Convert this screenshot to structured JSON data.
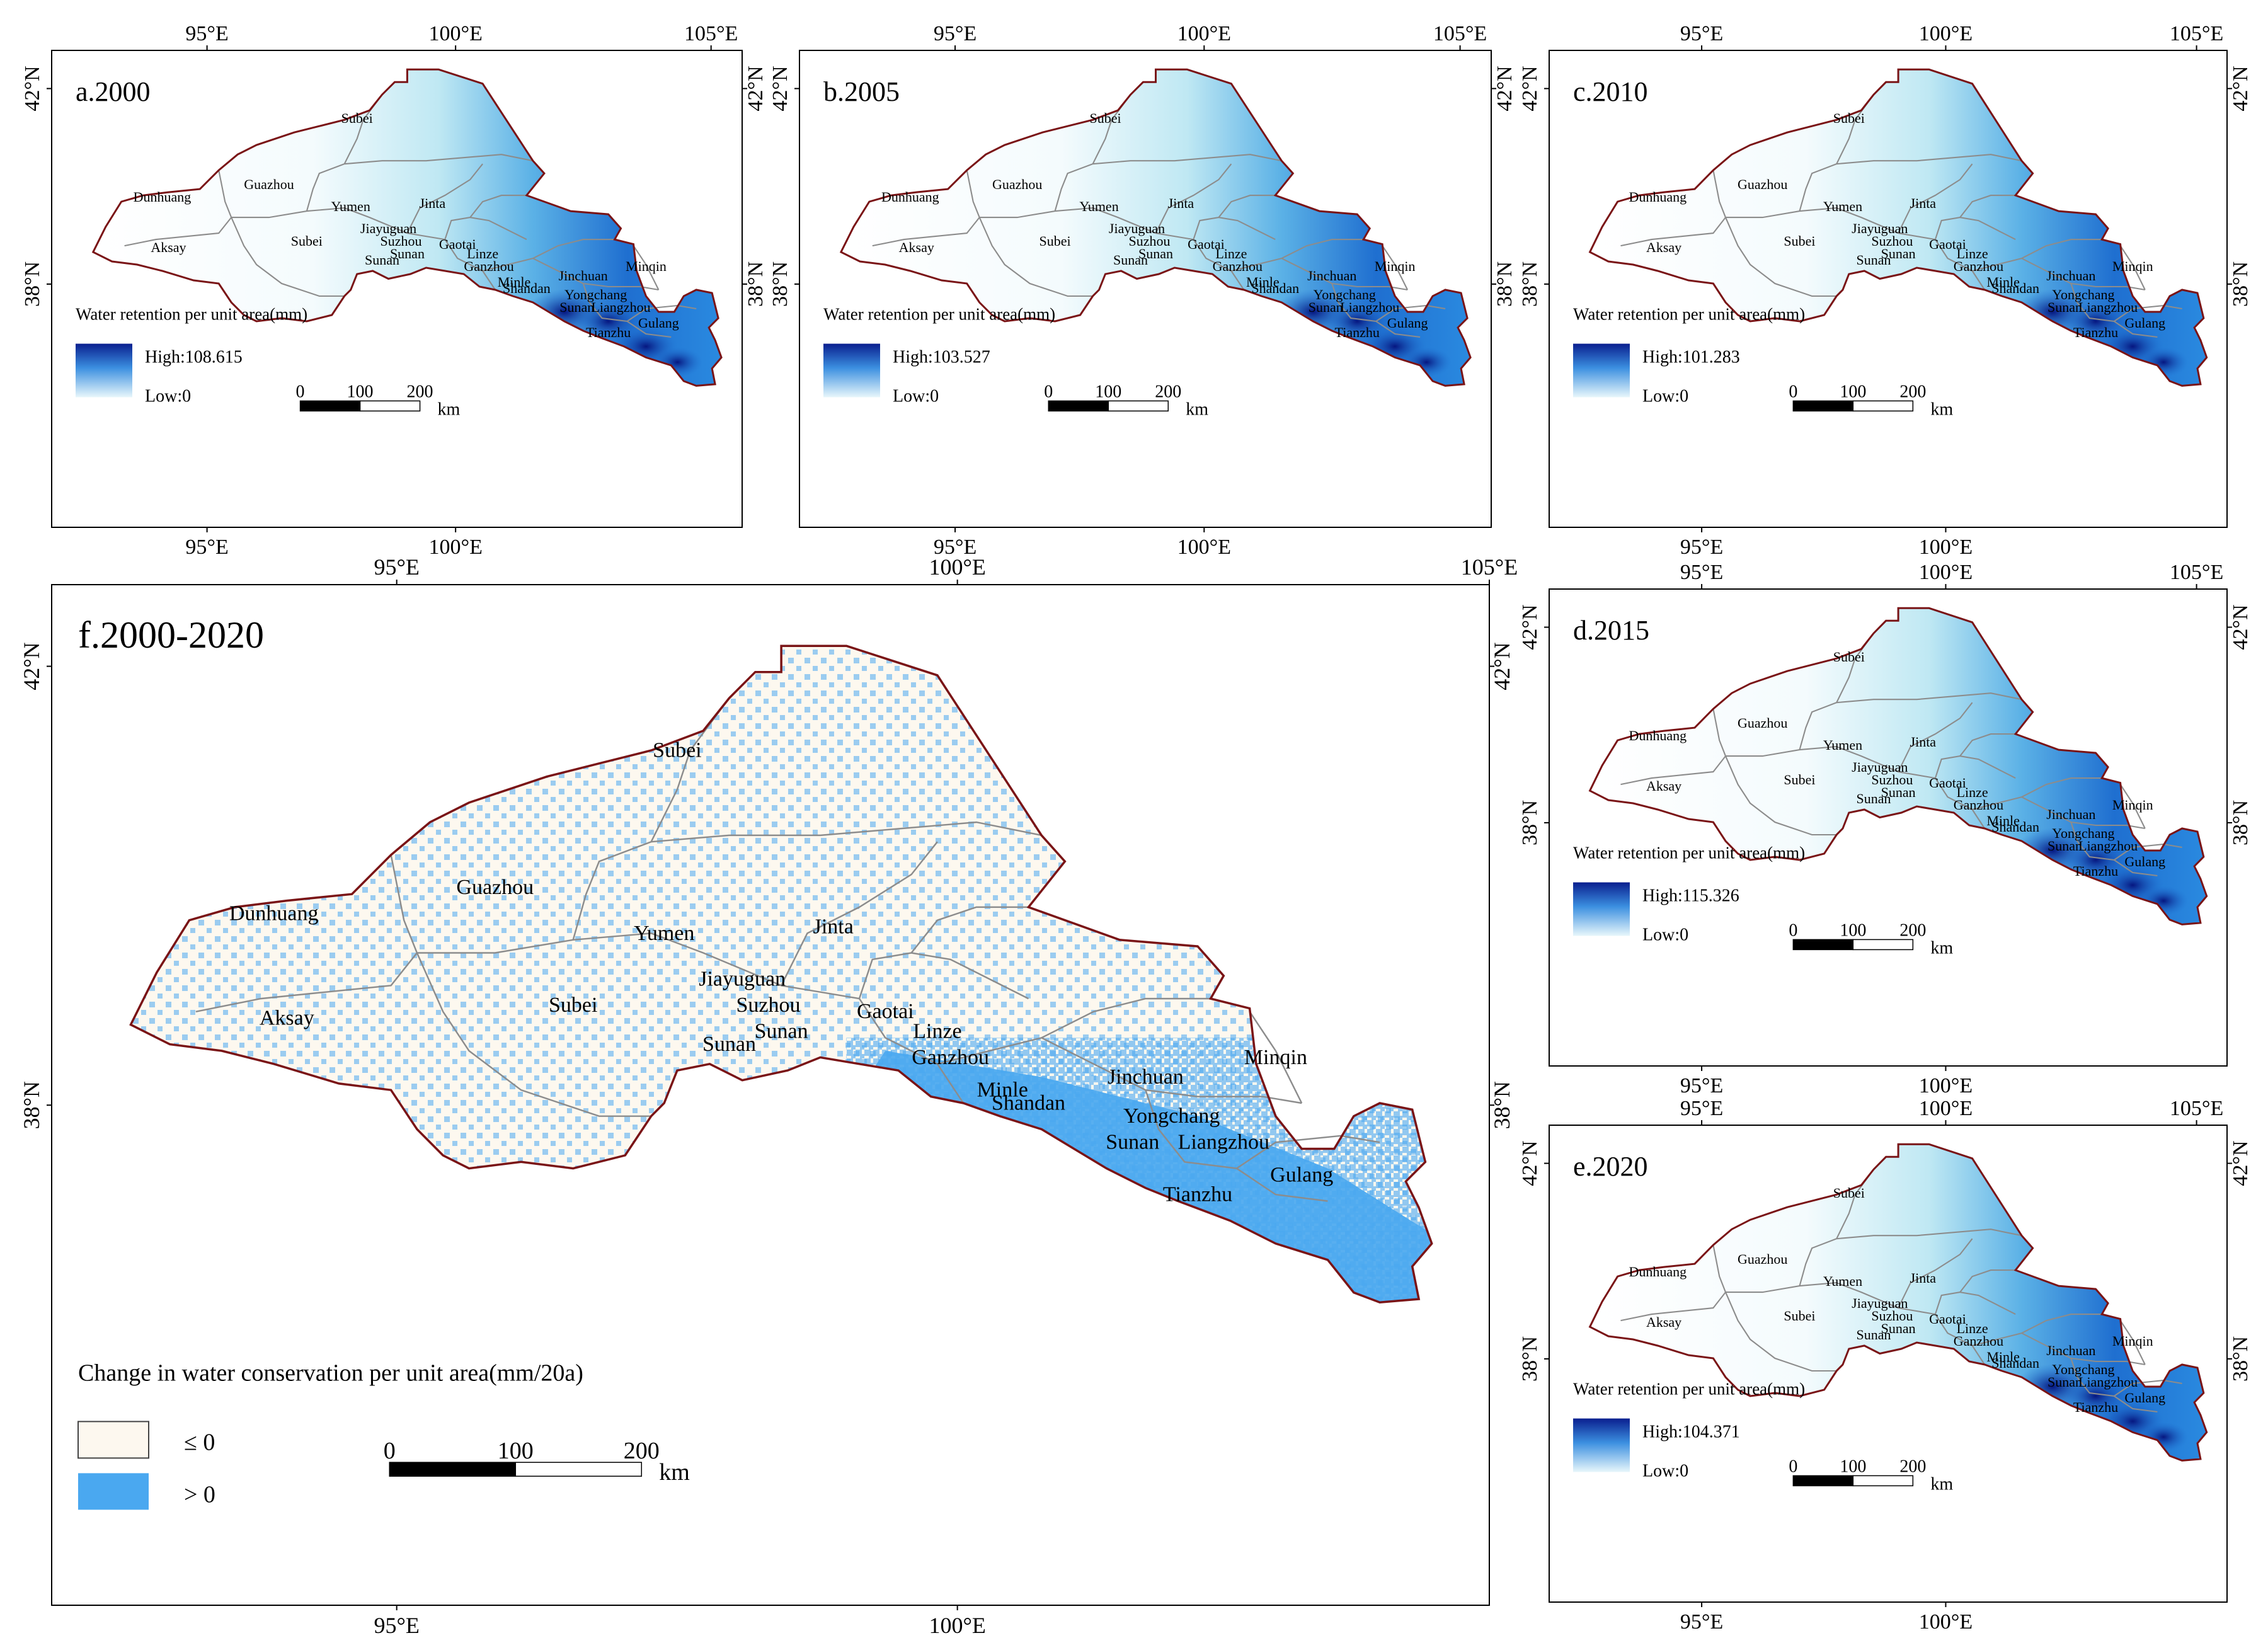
{
  "coord_labels": {
    "lon_95": "95°E",
    "lon_100": "100°E",
    "lon_105": "105°E",
    "lat_42": "42°N",
    "lat_38": "38°N"
  },
  "county_names": {
    "subei_n": "Subei",
    "dunhuang": "Dunhuang",
    "guazhou": "Guazhou",
    "yumen": "Yumen",
    "jinta": "Jinta",
    "jiayuguan": "Jiayuguan",
    "suzhou": "Suzhou",
    "sunan_a": "Sunan",
    "sunan_b": "Sunan",
    "sunan_c": "Sunan",
    "gaotai": "Gaotai",
    "linze": "Linze",
    "ganzhou": "Ganzhou",
    "minle": "Minle",
    "shandan": "Shandan",
    "jinchuan": "Jinchuan",
    "minqin": "Minqin",
    "yongchang": "Yongchang",
    "liangzhou": "Liangzhou",
    "gulang": "Gulang",
    "tianzhu": "Tianzhu",
    "aksay": "Aksay",
    "subei_s": "Subei"
  },
  "panels": {
    "a": {
      "title": "a.2000",
      "legend_title": "Water retention per unit area(mm)",
      "high": "High:108.615",
      "low": "Low:0"
    },
    "b": {
      "title": "b.2005",
      "legend_title": "Water retention per unit area(mm)",
      "high": "High:103.527",
      "low": "Low:0"
    },
    "c": {
      "title": "c.2010",
      "legend_title": "Water retention per unit area(mm)",
      "high": "High:101.283",
      "low": "Low:0"
    },
    "d": {
      "title": "d.2015",
      "legend_title": "Water retention per unit area(mm)",
      "high": "High:115.326",
      "low": "Low:0"
    },
    "e": {
      "title": "e.2020",
      "legend_title": "Water retention per unit area(mm)",
      "high": "High:104.371",
      "low": "Low:0"
    },
    "f": {
      "title": "f.2000-2020",
      "legend_title": "Change in water conservation per unit area(mm/20a)",
      "class_neg": "≤ 0",
      "class_pos": "> 0"
    }
  },
  "scale_bar": {
    "t0": "0",
    "t1": "100",
    "t2": "200",
    "unit": "km"
  },
  "colors": {
    "retention_high": "#0a1f8f",
    "retention_mid": "#3b8fe0",
    "retention_low": "#e8f7fb",
    "change_le0": "#fdf8ef",
    "change_gt0": "#4aa8f0",
    "outline": "#7a1416",
    "county_line": "#8c8c8c"
  }
}
